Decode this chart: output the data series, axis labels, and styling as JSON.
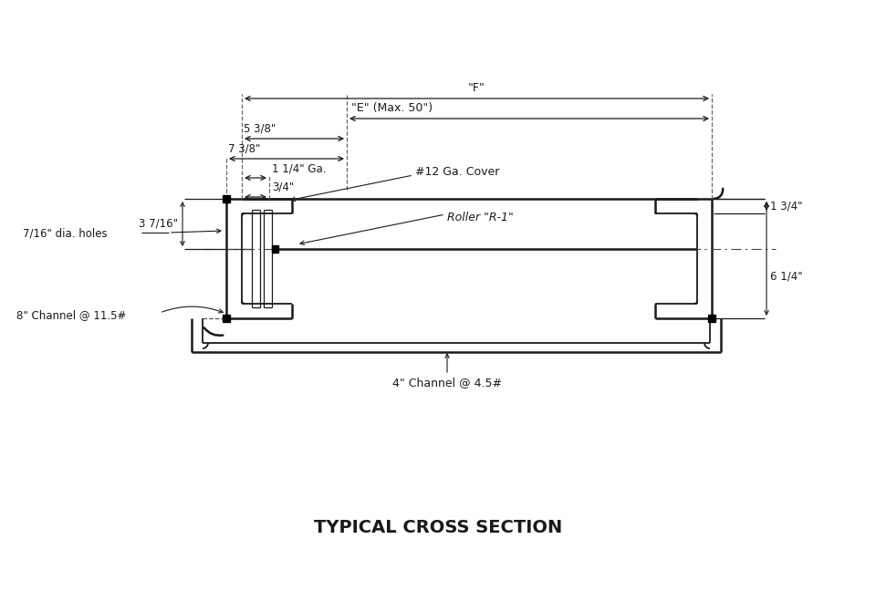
{
  "title": "TYPICAL CROSS SECTION",
  "background_color": "#ffffff",
  "line_color": "#1a1a1a",
  "annotations": {
    "F_label": "\"F\"",
    "E_label": "\"E\" (Max. 50\")",
    "dim_5_3_8": "5 3/8\"",
    "dim_7_3_8": "7 3/8\"",
    "dim_1_1_4": "1 1/4\" Ga.",
    "dim_3_4": "3/4\"",
    "dia_holes": "7/16\" dia. holes",
    "dim_3_7_16": "3 7/16\"",
    "channel_8": "8\" Channel @ 11.5#",
    "channel_4": "4\" Channel @ 4.5#",
    "cover_label": "#12 Ga. Cover",
    "roller_label": "Roller \"R-1\"",
    "dim_1_3_4": "1 3/4\"",
    "dim_6_1_4": "6 1/4\""
  }
}
